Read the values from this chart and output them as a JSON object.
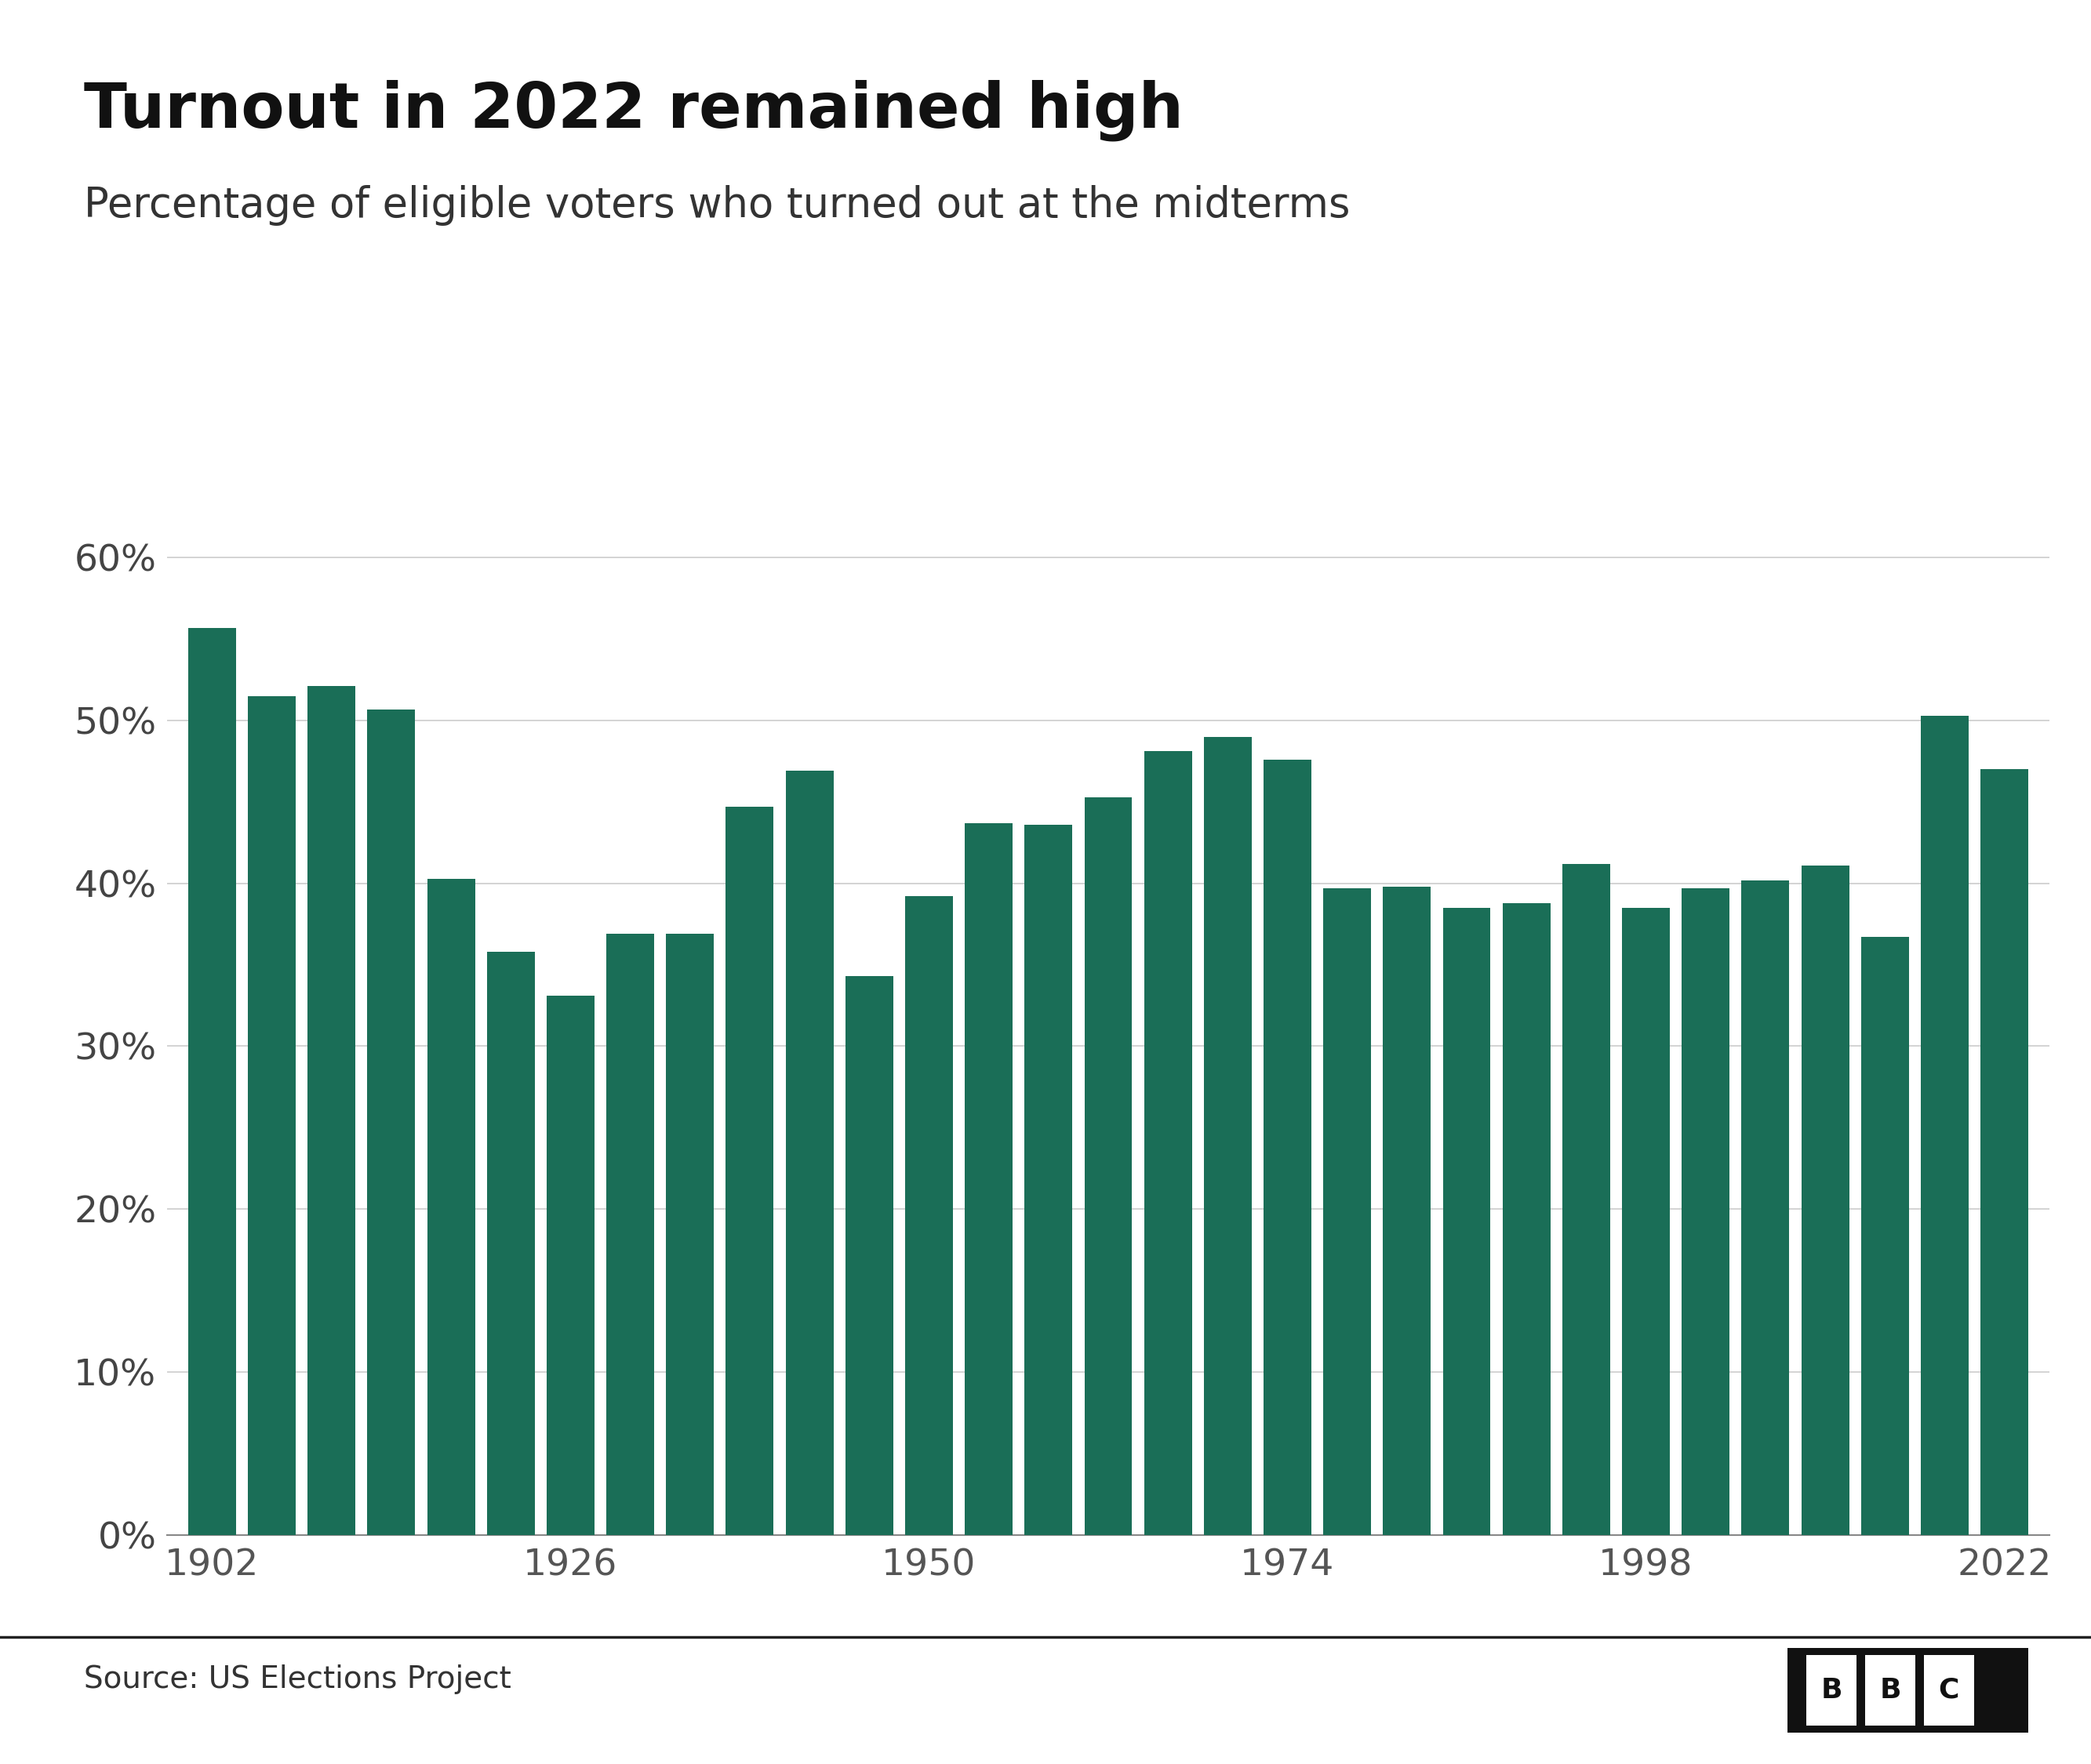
{
  "title": "Turnout in 2022 remained high",
  "subtitle": "Percentage of eligible voters who turned out at the midterms",
  "source": "Source: US Elections Project",
  "bar_color": "#1a6e57",
  "background_color": "#ffffff",
  "years": [
    1902,
    1906,
    1910,
    1914,
    1918,
    1922,
    1926,
    1930,
    1934,
    1938,
    1942,
    1946,
    1950,
    1954,
    1958,
    1962,
    1966,
    1970,
    1974,
    1978,
    1982,
    1986,
    1990,
    1994,
    1998,
    2002,
    2006,
    2010,
    2014,
    2018,
    2022
  ],
  "values": [
    55.7,
    51.5,
    52.1,
    50.7,
    40.3,
    35.8,
    33.1,
    36.9,
    36.9,
    44.7,
    46.9,
    34.3,
    39.2,
    43.7,
    43.6,
    45.3,
    48.1,
    49.0,
    47.6,
    39.7,
    39.8,
    38.5,
    38.8,
    41.2,
    38.5,
    39.7,
    40.2,
    41.1,
    36.7,
    50.3,
    47.0
  ],
  "ylim": [
    0,
    65
  ],
  "yticks": [
    0,
    10,
    20,
    30,
    40,
    50,
    60
  ],
  "xticks": [
    1902,
    1926,
    1950,
    1974,
    1998,
    2022
  ],
  "title_fontsize": 58,
  "subtitle_fontsize": 38,
  "source_fontsize": 28,
  "tick_fontsize": 34,
  "bar_width": 3.2
}
